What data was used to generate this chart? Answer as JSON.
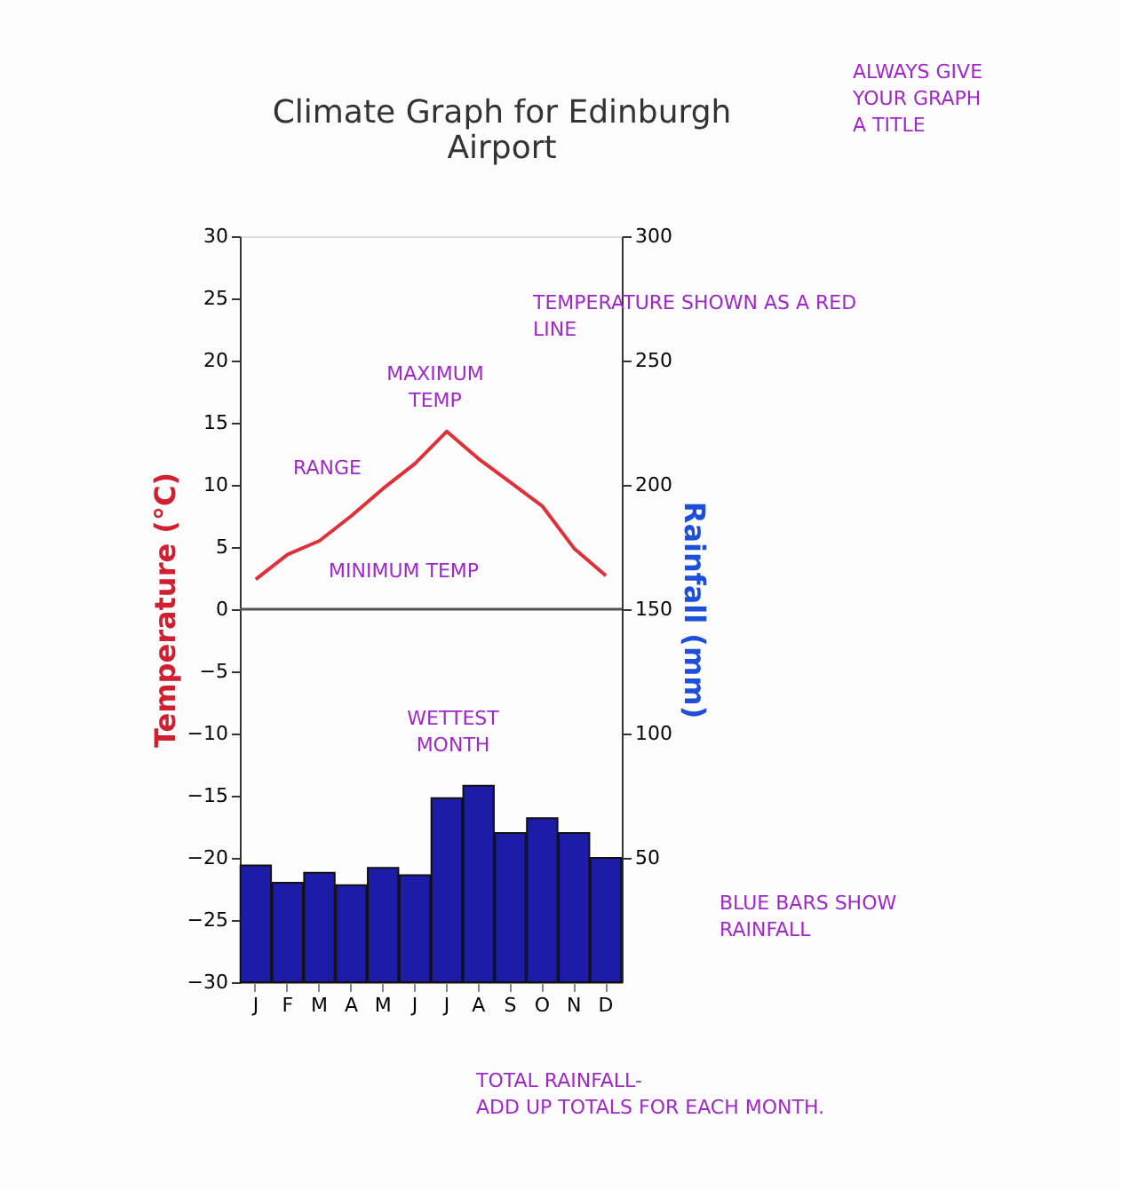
{
  "chart_data": {
    "type": "bar",
    "title": "Climate Graph for Edinburgh\nAirport",
    "ylabel": "Temperature (°C)",
    "y2label": "Rainfall (mm)",
    "categories": [
      "J",
      "F",
      "M",
      "A",
      "M",
      "J",
      "J",
      "A",
      "S",
      "O",
      "N",
      "D"
    ],
    "series": [
      {
        "axis": "y2",
        "color": "#1c1ca8",
        "values": [
          47,
          40,
          44,
          39,
          46,
          43,
          74,
          79,
          60,
          66,
          60,
          50
        ]
      },
      {
        "type": "line",
        "color": "#e0303a",
        "values": [
          2.4,
          4.4,
          5.5,
          7.5,
          9.7,
          11.7,
          14.3,
          12.1,
          10.2,
          8.3,
          4.9,
          2.7
        ]
      }
    ],
    "ylim": [
      -30,
      30
    ],
    "yticks": [
      -30,
      -25,
      -20,
      -15,
      -10,
      -5,
      0,
      5,
      10,
      15,
      20,
      25,
      30
    ],
    "y2lim": [
      0,
      300
    ],
    "y2ticks": [
      50,
      100,
      150,
      200,
      250,
      300
    ],
    "ref_lines": [
      {
        "axis": "y",
        "value": 0,
        "color": "#555555"
      }
    ],
    "grid": false,
    "marker": "none",
    "line_style": "solid",
    "annotations": [
      "ALWAYS GIVE\nYOUR GRAPH\nA TITLE",
      "TEMPERATURE SHOWN AS A RED\nLINE",
      "MAXIMUM\nTEMP",
      "RANGE",
      "MINIMUM TEMP",
      "WETTEST\nMONTH",
      "BLUE BARS SHOW\nRAINFALL",
      "TOTAL RAINFALL-\nADD UP TOTALS FOR EACH MONTH."
    ]
  }
}
